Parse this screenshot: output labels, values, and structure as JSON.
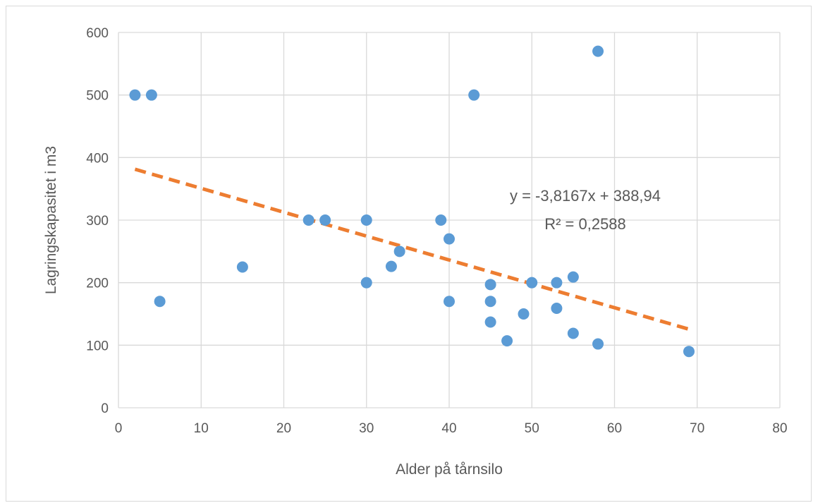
{
  "chart_data": {
    "type": "scatter",
    "title": "",
    "xlabel": "Alder på tårnsilo",
    "ylabel": "Lagringskapasitet i m3",
    "xlim": [
      0,
      80
    ],
    "ylim": [
      0,
      600
    ],
    "x_ticks": [
      0,
      10,
      20,
      30,
      40,
      50,
      60,
      70,
      80
    ],
    "y_ticks": [
      0,
      100,
      200,
      300,
      400,
      500,
      600
    ],
    "x_tick_labels": [
      "0",
      "10",
      "20",
      "30",
      "40",
      "50",
      "60",
      "70",
      "80"
    ],
    "y_tick_labels": [
      "0",
      "100",
      "200",
      "300",
      "400",
      "500",
      "600"
    ],
    "grid": true,
    "legend": "none",
    "series": [
      {
        "color": "#5b9bd5",
        "points": [
          {
            "x": 2,
            "y": 500
          },
          {
            "x": 4,
            "y": 500
          },
          {
            "x": 5,
            "y": 170
          },
          {
            "x": 15,
            "y": 225
          },
          {
            "x": 23,
            "y": 300
          },
          {
            "x": 25,
            "y": 300
          },
          {
            "x": 30,
            "y": 300
          },
          {
            "x": 30,
            "y": 200
          },
          {
            "x": 33,
            "y": 226
          },
          {
            "x": 34,
            "y": 250
          },
          {
            "x": 39,
            "y": 300
          },
          {
            "x": 40,
            "y": 270
          },
          {
            "x": 40,
            "y": 170
          },
          {
            "x": 43,
            "y": 500
          },
          {
            "x": 45,
            "y": 197
          },
          {
            "x": 45,
            "y": 170
          },
          {
            "x": 45,
            "y": 137
          },
          {
            "x": 47,
            "y": 107
          },
          {
            "x": 49,
            "y": 150
          },
          {
            "x": 50,
            "y": 200
          },
          {
            "x": 53,
            "y": 200
          },
          {
            "x": 53,
            "y": 159
          },
          {
            "x": 55,
            "y": 209
          },
          {
            "x": 55,
            "y": 119
          },
          {
            "x": 58,
            "y": 570
          },
          {
            "x": 58,
            "y": 102
          },
          {
            "x": 69,
            "y": 90
          }
        ]
      }
    ],
    "trendline": {
      "type": "linear",
      "slope": -3.8167,
      "intercept": 388.94,
      "x_range": [
        2,
        69
      ],
      "color": "#ed7d31",
      "style": "dashed",
      "equation_label": "y = -3,8167x + 388,94",
      "r2_label": "R² = 0,2588"
    }
  }
}
